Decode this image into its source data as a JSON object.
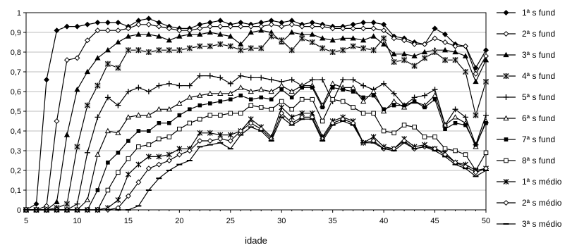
{
  "chart_data": {
    "type": "line",
    "title": "",
    "xlabel": "idade",
    "ylabel": "",
    "xlim": [
      5,
      50
    ],
    "ylim": [
      0,
      1
    ],
    "xticks": [
      "5",
      "10",
      "15",
      "20",
      "25",
      "30",
      "35",
      "40",
      "45",
      "50"
    ],
    "yticks": [
      "0",
      "0,1",
      "0,2",
      "0,3",
      "0,4",
      "0,5",
      "0,6",
      "0,7",
      "0,8",
      "0,9",
      "1"
    ],
    "grid": "horizontal",
    "legend_position": "right",
    "x": [
      5,
      6,
      7,
      8,
      9,
      10,
      11,
      12,
      13,
      14,
      15,
      16,
      17,
      18,
      19,
      20,
      21,
      22,
      23,
      24,
      25,
      26,
      27,
      28,
      29,
      30,
      31,
      32,
      33,
      34,
      35,
      36,
      37,
      38,
      39,
      40,
      41,
      42,
      43,
      44,
      45,
      46,
      47,
      48,
      49,
      50
    ],
    "series": [
      {
        "name": "1ª s fund",
        "marker": "diamond-filled",
        "values": [
          0,
          0.03,
          0.66,
          0.91,
          0.93,
          0.93,
          0.94,
          0.95,
          0.95,
          0.95,
          0.93,
          0.96,
          0.97,
          0.95,
          0.93,
          0.92,
          0.92,
          0.94,
          0.95,
          0.96,
          0.94,
          0.95,
          0.94,
          0.95,
          0.96,
          0.95,
          0.96,
          0.94,
          0.95,
          0.94,
          0.93,
          0.93,
          0.94,
          0.95,
          0.95,
          0.94,
          0.88,
          0.87,
          0.85,
          0.84,
          0.92,
          0.89,
          0.84,
          0.83,
          0.72,
          0.81
        ]
      },
      {
        "name": "2ª s fund",
        "marker": "diamond-open",
        "values": [
          0,
          0,
          0.02,
          0.45,
          0.76,
          0.77,
          0.86,
          0.91,
          0.91,
          0.91,
          0.92,
          0.94,
          0.94,
          0.93,
          0.92,
          0.91,
          0.91,
          0.92,
          0.93,
          0.93,
          0.93,
          0.93,
          0.93,
          0.93,
          0.94,
          0.93,
          0.94,
          0.93,
          0.93,
          0.93,
          0.92,
          0.92,
          0.92,
          0.92,
          0.92,
          0.91,
          0.87,
          0.86,
          0.84,
          0.84,
          0.87,
          0.85,
          0.83,
          0.83,
          0.69,
          0.78
        ]
      },
      {
        "name": "3ª s fund",
        "marker": "triangle-filled",
        "values": [
          0,
          0,
          0,
          0.04,
          0.38,
          0.61,
          0.7,
          0.77,
          0.81,
          0.85,
          0.88,
          0.89,
          0.89,
          0.88,
          0.86,
          0.88,
          0.89,
          0.89,
          0.9,
          0.89,
          0.88,
          0.84,
          0.9,
          0.91,
          0.9,
          0.85,
          0.9,
          0.89,
          0.89,
          0.87,
          0.86,
          0.87,
          0.87,
          0.86,
          0.88,
          0.84,
          0.79,
          0.79,
          0.78,
          0.8,
          0.81,
          0.81,
          0.8,
          0.78,
          0.65,
          0.76
        ]
      },
      {
        "name": "4ª s fund",
        "marker": "asterisk-shaded",
        "values": [
          0,
          0,
          0,
          0.01,
          0.03,
          0.32,
          0.53,
          0.63,
          0.74,
          0.72,
          0.81,
          0.81,
          0.8,
          0.81,
          0.81,
          0.81,
          0.82,
          0.83,
          0.83,
          0.84,
          0.83,
          0.81,
          0.82,
          0.82,
          0.88,
          0.86,
          0.81,
          0.87,
          0.85,
          0.82,
          0.8,
          0.81,
          0.83,
          0.82,
          0.81,
          0.87,
          0.75,
          0.76,
          0.73,
          0.77,
          0.8,
          0.76,
          0.76,
          0.7,
          0.48,
          0.65
        ]
      },
      {
        "name": "5ª s fund",
        "marker": "plus",
        "values": [
          0,
          0,
          0,
          0,
          0,
          0.03,
          0.29,
          0.47,
          0.57,
          0.53,
          0.6,
          0.62,
          0.6,
          0.63,
          0.64,
          0.63,
          0.63,
          0.68,
          0.68,
          0.67,
          0.64,
          0.68,
          0.67,
          0.67,
          0.66,
          0.65,
          0.66,
          0.63,
          0.66,
          0.66,
          0.55,
          0.66,
          0.66,
          0.63,
          0.61,
          0.64,
          0.59,
          0.53,
          0.57,
          0.58,
          0.61,
          0.43,
          0.51,
          0.47,
          0.33,
          0.48
        ]
      },
      {
        "name": "6ª s fund",
        "marker": "triangle-open",
        "values": [
          0,
          0,
          0,
          0,
          0,
          0,
          0.05,
          0.28,
          0.4,
          0.39,
          0.47,
          0.48,
          0.48,
          0.51,
          0.51,
          0.54,
          0.57,
          0.58,
          0.59,
          0.59,
          0.59,
          0.62,
          0.6,
          0.61,
          0.6,
          0.63,
          0.6,
          0.63,
          0.63,
          0.53,
          0.64,
          0.62,
          0.62,
          0.55,
          0.6,
          0.5,
          0.55,
          0.52,
          0.55,
          0.53,
          0.58,
          0.43,
          0.47,
          0.44,
          0.32,
          0.45
        ]
      },
      {
        "name": "7ª s fund",
        "marker": "square-filled",
        "values": [
          0,
          0,
          0,
          0,
          0,
          0,
          0,
          0.1,
          0.24,
          0.29,
          0.35,
          0.4,
          0.4,
          0.44,
          0.44,
          0.48,
          0.51,
          0.53,
          0.54,
          0.55,
          0.56,
          0.58,
          0.56,
          0.57,
          0.56,
          0.61,
          0.57,
          0.62,
          0.62,
          0.52,
          0.62,
          0.61,
          0.6,
          0.57,
          0.58,
          0.51,
          0.53,
          0.53,
          0.55,
          0.52,
          0.56,
          0.41,
          0.44,
          0.43,
          0.33,
          0.44
        ]
      },
      {
        "name": "8ª s fund",
        "marker": "square-open",
        "values": [
          0,
          0,
          0,
          0,
          0,
          0,
          0,
          0,
          0.1,
          0.19,
          0.26,
          0.32,
          0.33,
          0.36,
          0.37,
          0.41,
          0.44,
          0.46,
          0.48,
          0.48,
          0.49,
          0.49,
          0.53,
          0.52,
          0.51,
          0.55,
          0.51,
          0.56,
          0.56,
          0.45,
          0.56,
          0.55,
          0.52,
          0.49,
          0.49,
          0.4,
          0.39,
          0.43,
          0.42,
          0.37,
          0.37,
          0.31,
          0.3,
          0.28,
          0.2,
          0.29
        ]
      },
      {
        "name": "1ª s médio",
        "marker": "asterisk",
        "values": [
          0,
          0,
          0,
          0,
          0,
          0,
          0,
          0,
          0.01,
          0.05,
          0.18,
          0.23,
          0.27,
          0.27,
          0.28,
          0.31,
          0.31,
          0.39,
          0.39,
          0.38,
          0.38,
          0.4,
          0.46,
          0.42,
          0.37,
          0.52,
          0.47,
          0.49,
          0.49,
          0.37,
          0.45,
          0.47,
          0.45,
          0.34,
          0.37,
          0.32,
          0.31,
          0.36,
          0.32,
          0.33,
          0.31,
          0.29,
          0.24,
          0.23,
          0.2,
          0.21
        ]
      },
      {
        "name": "2ª s médio",
        "marker": "diamond-open",
        "values": [
          0,
          0,
          0,
          0,
          0,
          0,
          0,
          0,
          0,
          0.01,
          0.07,
          0.14,
          0.21,
          0.23,
          0.25,
          0.28,
          0.3,
          0.35,
          0.35,
          0.36,
          0.35,
          0.4,
          0.44,
          0.41,
          0.36,
          0.49,
          0.44,
          0.47,
          0.47,
          0.36,
          0.44,
          0.46,
          0.44,
          0.34,
          0.35,
          0.31,
          0.31,
          0.35,
          0.31,
          0.32,
          0.31,
          0.28,
          0.24,
          0.22,
          0.19,
          0.21
        ]
      },
      {
        "name": "3ª s médio",
        "marker": "dash",
        "values": [
          0,
          0,
          0,
          0,
          0,
          0,
          0,
          0,
          0,
          0,
          0,
          0.02,
          0.1,
          0.16,
          0.2,
          0.23,
          0.25,
          0.32,
          0.33,
          0.34,
          0.31,
          0.38,
          0.42,
          0.4,
          0.35,
          0.47,
          0.43,
          0.46,
          0.46,
          0.35,
          0.43,
          0.45,
          0.43,
          0.34,
          0.34,
          0.31,
          0.3,
          0.34,
          0.31,
          0.32,
          0.3,
          0.27,
          0.23,
          0.21,
          0.17,
          0.2
        ]
      }
    ]
  }
}
